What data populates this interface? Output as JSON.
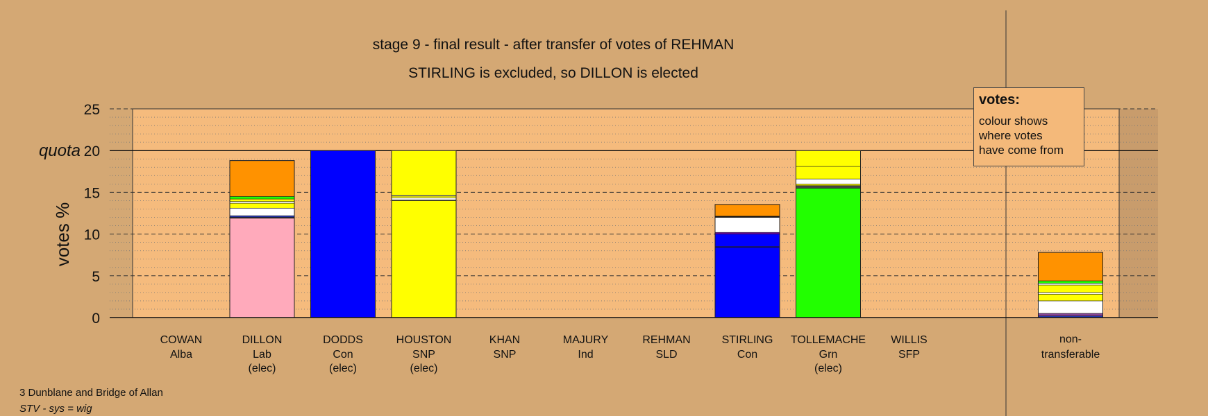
{
  "chart_data": {
    "type": "bar",
    "stacked": true,
    "title": "stage 9 - final result - after transfer of votes of REHMAN",
    "subtitle": "STIRLING is excluded, so DILLON is elected",
    "ylabel": "votes %",
    "ylim": [
      0,
      25
    ],
    "yticks": [
      0,
      5,
      10,
      15,
      20,
      25
    ],
    "quota_label": "quota",
    "quota": 20,
    "grid": true,
    "candidates": [
      {
        "name": "COWAN",
        "party": "Alba",
        "status": "",
        "segments": []
      },
      {
        "name": "DILLON",
        "party": "Lab",
        "status": "(elec)",
        "segments": [
          {
            "color": "#ffaabb",
            "value": 11.9
          },
          {
            "color": "#111111",
            "value": 0.1
          },
          {
            "color": "#2233aa",
            "value": 0.2
          },
          {
            "color": "#ffffff",
            "value": 0.9
          },
          {
            "color": "#ffff00",
            "value": 0.6
          },
          {
            "color": "#ffffff",
            "value": 0.2
          },
          {
            "color": "#ffff00",
            "value": 0.3
          },
          {
            "color": "#22ff00",
            "value": 0.3
          },
          {
            "color": "#ff9200",
            "value": 4.3
          }
        ]
      },
      {
        "name": "DODDS",
        "party": "Con",
        "status": "(elec)",
        "segments": [
          {
            "color": "#0000ff",
            "value": 20.0
          }
        ]
      },
      {
        "name": "HOUSTON",
        "party": "SNP",
        "status": "(elec)",
        "segments": [
          {
            "color": "#ffff00",
            "value": 14.0
          },
          {
            "color": "#555555",
            "value": 0.1
          },
          {
            "color": "#ffffff",
            "value": 0.25
          },
          {
            "color": "#ffff00",
            "value": 0.2
          },
          {
            "color": "#ffffff",
            "value": 0.1
          },
          {
            "color": "#ffff00",
            "value": 5.35
          }
        ]
      },
      {
        "name": "KHAN",
        "party": "SNP",
        "status": "",
        "segments": []
      },
      {
        "name": "MAJURY",
        "party": "Ind",
        "status": "",
        "segments": []
      },
      {
        "name": "REHMAN",
        "party": "SLD",
        "status": "",
        "segments": []
      },
      {
        "name": "STIRLING",
        "party": "Con",
        "status": "",
        "segments": [
          {
            "color": "#0000ff",
            "value": 8.4
          },
          {
            "color": "#000088",
            "value": 0.1
          },
          {
            "color": "#0000ff",
            "value": 1.5
          },
          {
            "color": "#6600aa",
            "value": 0.2
          },
          {
            "color": "#ffffff",
            "value": 1.8
          },
          {
            "color": "#111111",
            "value": 0.15
          },
          {
            "color": "#ff9200",
            "value": 1.4
          }
        ]
      },
      {
        "name": "TOLLEMACHE",
        "party": "Grn",
        "status": "(elec)",
        "segments": [
          {
            "color": "#22ff00",
            "value": 15.5
          },
          {
            "color": "#444444",
            "value": 0.3
          },
          {
            "color": "#ffff00",
            "value": 0.2
          },
          {
            "color": "#ffffff",
            "value": 0.6
          },
          {
            "color": "#ffff00",
            "value": 1.5
          },
          {
            "color": "#ffff00",
            "value": 1.9
          }
        ]
      },
      {
        "name": "WILLIS",
        "party": "SFP",
        "status": "",
        "segments": []
      }
    ],
    "nontransferable": {
      "label_line1": "non-",
      "label_line2": "transferable",
      "segments": [
        {
          "color": "#2233aa",
          "value": 0.2
        },
        {
          "color": "#884499",
          "value": 0.3
        },
        {
          "color": "#ffffff",
          "value": 1.5
        },
        {
          "color": "#ffff00",
          "value": 0.8
        },
        {
          "color": "#ffffff",
          "value": 0.2
        },
        {
          "color": "#ffff00",
          "value": 0.9
        },
        {
          "color": "#ffffff",
          "value": 0.2
        },
        {
          "color": "#22ff00",
          "value": 0.3
        },
        {
          "color": "#ff9200",
          "value": 3.4
        }
      ]
    }
  },
  "legend": {
    "title": "votes:",
    "line1": "colour shows",
    "line2": "where votes",
    "line3": "have come from"
  },
  "footer": {
    "ward": "3 Dunblane and Bridge of Allan",
    "system": "STV - sys = wig"
  }
}
